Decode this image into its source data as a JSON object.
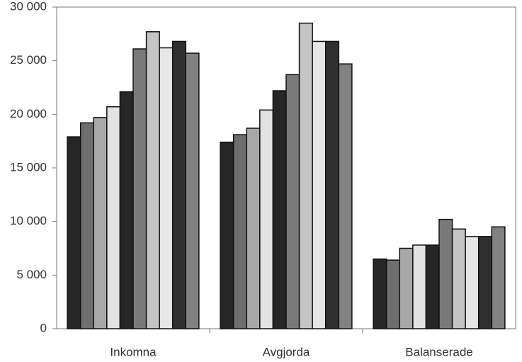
{
  "chart_data": {
    "type": "bar",
    "categories": [
      "Inkomna",
      "Avgjorda",
      "Balanserade"
    ],
    "series": [
      {
        "color": "#262626",
        "values": [
          17900,
          17400,
          6500
        ]
      },
      {
        "color": "#6e6e6e",
        "values": [
          19200,
          18100,
          6400
        ]
      },
      {
        "color": "#a8a8a8",
        "values": [
          19700,
          18700,
          7500
        ]
      },
      {
        "color": "#e2e2e2",
        "values": [
          20700,
          20400,
          7800
        ]
      },
      {
        "color": "#262626",
        "values": [
          22100,
          22200,
          7800
        ]
      },
      {
        "color": "#7a7a7a",
        "values": [
          26100,
          23700,
          10200
        ]
      },
      {
        "color": "#c4c4c4",
        "values": [
          27700,
          28500,
          9300
        ]
      },
      {
        "color": "#e6e6e6",
        "values": [
          26200,
          26800,
          8600
        ]
      },
      {
        "color": "#303030",
        "values": [
          26800,
          26800,
          8600
        ]
      },
      {
        "color": "#828282",
        "values": [
          25700,
          24700,
          9500
        ]
      }
    ],
    "ylim": [
      0,
      30000
    ],
    "yticks": [
      0,
      {
        "value": 5000,
        "label": "5 000"
      },
      {
        "value": 10000,
        "label": "10 000"
      },
      {
        "value": 15000,
        "label": "15 000"
      },
      {
        "value": 20000,
        "label": "20 000"
      },
      {
        "value": 25000,
        "label": "25 000"
      },
      {
        "value": 30000,
        "label": "30 000"
      }
    ]
  }
}
